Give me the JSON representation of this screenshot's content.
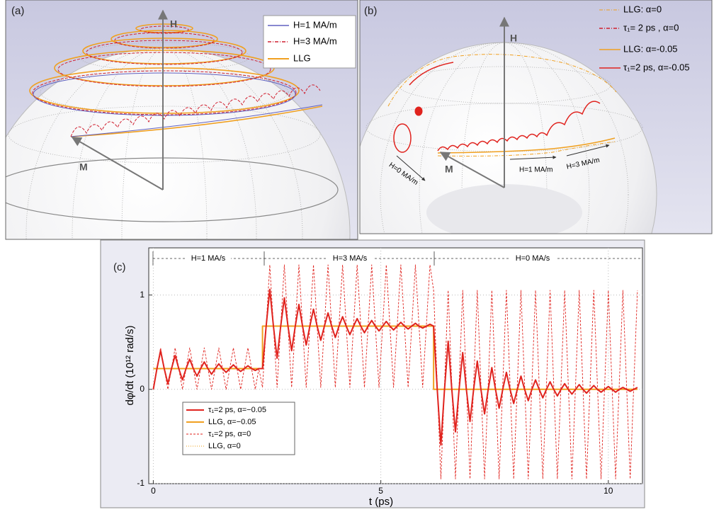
{
  "panels": {
    "a": {
      "label": "(a)",
      "h_axis": "H",
      "m_axis": "M",
      "legend": [
        "H=1 MA/m",
        "H=3 MA/m",
        "LLG"
      ]
    },
    "b": {
      "label": "(b)",
      "h_axis": "H",
      "m_axis": "M",
      "field_labels": [
        "H=0 MA/m",
        "H=1 MA/m",
        "H=3 MA/m"
      ],
      "legend": [
        "LLG: α=0",
        "τ₁= 2 ps , α=0",
        "LLG: α=-0.05",
        "τ₁=2 ps, α=-0.05"
      ]
    }
  },
  "chart_data": {
    "type": "line",
    "panel_label": "(c)",
    "x_label": "t (ps)",
    "y_label": "dφ/dt  (10¹² rad/s)",
    "annotations": [
      "H=1 MA/s",
      "H=3 MA/s",
      "H=0 MA/s"
    ],
    "xlim": [
      -0.1,
      10.75
    ],
    "ylim": [
      -1,
      1.5
    ],
    "xticks": [
      0,
      5,
      10
    ],
    "yticks": [
      -1,
      0,
      1
    ],
    "grid": true,
    "legend": "lower left",
    "x": [
      0,
      0.08,
      0.16,
      0.24,
      0.32,
      0.4,
      0.48,
      0.56,
      0.64,
      0.72,
      0.8,
      0.88,
      0.96,
      1.04,
      1.12,
      1.2,
      1.28,
      1.36,
      1.44,
      1.52,
      1.6,
      1.68,
      1.76,
      1.84,
      1.92,
      2,
      2.08,
      2.16,
      2.24,
      2.32,
      2.4,
      2.48,
      2.56,
      2.64,
      2.72,
      2.8,
      2.88,
      2.96,
      3.04,
      3.12,
      3.2,
      3.28,
      3.36,
      3.44,
      3.52,
      3.6,
      3.68,
      3.76,
      3.84,
      3.92,
      4,
      4.08,
      4.16,
      4.24,
      4.32,
      4.4,
      4.48,
      4.56,
      4.64,
      4.72,
      4.8,
      4.88,
      4.96,
      5.04,
      5.12,
      5.2,
      5.28,
      5.36,
      5.44,
      5.52,
      5.6,
      5.68,
      5.76,
      5.84,
      5.92,
      6,
      6.08,
      6.16,
      6.24,
      6.32,
      6.4,
      6.48,
      6.56,
      6.64,
      6.72,
      6.8,
      6.88,
      6.96,
      7.04,
      7.12,
      7.2,
      7.28,
      7.36,
      7.44,
      7.52,
      7.6,
      7.68,
      7.76,
      7.84,
      7.92,
      8,
      8.08,
      8.16,
      8.24,
      8.32,
      8.4,
      8.48,
      8.56,
      8.64,
      8.72,
      8.8,
      8.88,
      8.96,
      9.04,
      9.12,
      9.2,
      9.28,
      9.36,
      9.44,
      9.52,
      9.6,
      9.68,
      9.76,
      9.84,
      9.92,
      10,
      10.08,
      10.16,
      10.24,
      10.32,
      10.4,
      10.48,
      10.56,
      10.64
    ],
    "series": [
      {
        "name": "τ₁=2 ps, α=−0.05",
        "color": "#e0231e",
        "line_style": "solid",
        "values": [
          0,
          0.22,
          0.41,
          0.22,
          0.06,
          0.22,
          0.36,
          0.22,
          0.1,
          0.22,
          0.32,
          0.22,
          0.14,
          0.22,
          0.29,
          0.22,
          0.16,
          0.22,
          0.27,
          0.22,
          0.18,
          0.22,
          0.26,
          0.22,
          0.19,
          0.22,
          0.25,
          0.22,
          0.2,
          0.22,
          0.22,
          0.67,
          1.06,
          0.67,
          0.33,
          0.67,
          0.97,
          0.67,
          0.41,
          0.67,
          0.9,
          0.67,
          0.47,
          0.67,
          0.85,
          0.67,
          0.52,
          0.67,
          0.81,
          0.67,
          0.55,
          0.67,
          0.77,
          0.67,
          0.58,
          0.67,
          0.75,
          0.67,
          0.6,
          0.67,
          0.73,
          0.67,
          0.62,
          0.67,
          0.72,
          0.67,
          0.63,
          0.67,
          0.71,
          0.67,
          0.64,
          0.67,
          0.7,
          0.67,
          0.65,
          0.67,
          0.69,
          0.67,
          0,
          -0.59,
          0,
          0.51,
          0,
          -0.45,
          0,
          0.39,
          0,
          -0.34,
          0,
          0.3,
          0,
          -0.26,
          0,
          0.23,
          0,
          -0.2,
          0,
          0.18,
          0,
          -0.15,
          0,
          0.14,
          0,
          -0.12,
          0,
          0.1,
          0,
          -0.09,
          0,
          0.08,
          0,
          -0.07,
          0,
          0.06,
          0,
          -0.05,
          0,
          0.05,
          0,
          -0.04,
          0,
          0.04,
          0,
          -0.03,
          0,
          0.03,
          0,
          -0.03,
          0,
          0.02,
          0,
          -0.02,
          0,
          0.02
        ]
      },
      {
        "name": "LLG, α=−0.05",
        "color": "#f0a020",
        "line_style": "solid",
        "x": [
          0,
          2.4,
          2.4,
          6.16,
          6.16,
          10.64
        ],
        "values": [
          0.22,
          0.22,
          0.67,
          0.67,
          0,
          0
        ]
      },
      {
        "name": "τ₁=2 ps, α=0",
        "color": "#e0231e",
        "line_style": "dashed",
        "values": [
          0,
          0.22,
          0.44,
          0.22,
          0,
          0.22,
          0.44,
          0.22,
          0,
          0.22,
          0.44,
          0.22,
          0,
          0.22,
          0.44,
          0.22,
          0,
          0.22,
          0.44,
          0.22,
          0,
          0.22,
          0.44,
          0.22,
          0,
          0.22,
          0.44,
          0.22,
          0,
          0.22,
          0.02,
          0.67,
          1.32,
          0.67,
          0.02,
          0.67,
          1.32,
          0.67,
          0.02,
          0.67,
          1.32,
          0.67,
          0.02,
          0.67,
          1.32,
          0.67,
          0.02,
          0.67,
          1.32,
          0.67,
          0.02,
          0.67,
          1.32,
          0.67,
          0.02,
          0.67,
          1.32,
          0.67,
          0.02,
          0.67,
          1.32,
          0.67,
          0.02,
          0.67,
          1.32,
          0.67,
          0.02,
          0.67,
          1.32,
          0.67,
          0.02,
          0.67,
          1.32,
          0.67,
          0.02,
          0.67,
          1.32,
          1.05,
          0.05,
          -0.95,
          0.05,
          1.05,
          0.05,
          -0.95,
          0.05,
          1.05,
          0.05,
          -0.95,
          0.05,
          1.05,
          0.05,
          -0.95,
          0.05,
          1.05,
          0.05,
          -0.95,
          0.05,
          1.05,
          0.05,
          -0.95,
          0.05,
          1.05,
          0.05,
          -0.95,
          0.05,
          1.05,
          0.05,
          -0.95,
          0.05,
          1.05,
          0.05,
          -0.95,
          0.05,
          1.05,
          0.05,
          -0.95,
          0.05,
          1.05,
          0.05,
          -0.95,
          0.05,
          1.05,
          0.05,
          -0.95,
          0.05,
          1.05,
          0.05,
          -0.95,
          0.05,
          1.05,
          0.05,
          -0.95,
          0.05,
          1.05
        ]
      },
      {
        "name": "LLG, α=0",
        "color": "#f0b040",
        "line_style": "dotted",
        "x": [
          0,
          2.4,
          2.4,
          6.16,
          6.16,
          10.64
        ],
        "values": [
          0.22,
          0.22,
          0.67,
          0.67,
          0,
          0
        ]
      }
    ]
  }
}
